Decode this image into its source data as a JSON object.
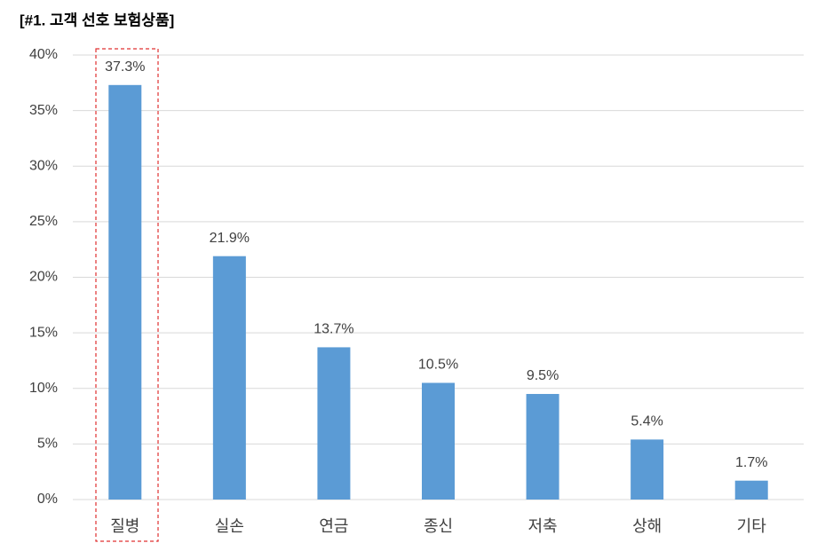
{
  "chart_data": {
    "type": "bar",
    "title": "[#1. 고객 선호 보험상품]",
    "categories": [
      "질병",
      "실손",
      "연금",
      "종신",
      "저축",
      "상해",
      "기타"
    ],
    "values": [
      37.3,
      21.9,
      13.7,
      10.5,
      9.5,
      5.4,
      1.7
    ],
    "value_labels": [
      "37.3%",
      "21.9%",
      "13.7%",
      "10.5%",
      "9.5%",
      "5.4%",
      "1.7%"
    ],
    "color": "#5b9bd5",
    "ylim": [
      0,
      40
    ],
    "yticks": [
      {
        "value": 0,
        "label": "0%"
      },
      {
        "value": 5,
        "label": "5%"
      },
      {
        "value": 10,
        "label": "10%"
      },
      {
        "value": 15,
        "label": "15%"
      },
      {
        "value": 20,
        "label": "20%"
      },
      {
        "value": 25,
        "label": "25%"
      },
      {
        "value": 30,
        "label": "30%"
      },
      {
        "value": 35,
        "label": "35%"
      },
      {
        "value": 40,
        "label": "40%"
      }
    ],
    "grid": true
  }
}
